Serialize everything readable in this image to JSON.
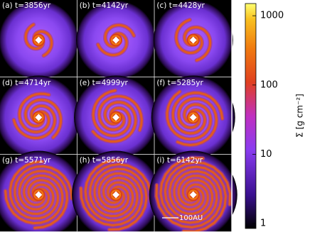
{
  "panels": [
    {
      "label": "(a) t=3856yr"
    },
    {
      "label": "(b) t=4142yr"
    },
    {
      "label": "(c) t=4428yr"
    },
    {
      "label": "(d) t=4714yr"
    },
    {
      "label": "(e) t=4999yr"
    },
    {
      "label": "(f) t=5285yr"
    },
    {
      "label": "(g) t=5571yr"
    },
    {
      "label": "(h) t=5856yr"
    },
    {
      "label": "(i) t=6142yr"
    }
  ],
  "scale_bar": "100AU",
  "colorbar": {
    "label": "Σ [g cm⁻²]",
    "log": true,
    "lim": [
      0.85,
      1500
    ],
    "ticks": [
      1,
      10,
      100,
      1000
    ]
  }
}
